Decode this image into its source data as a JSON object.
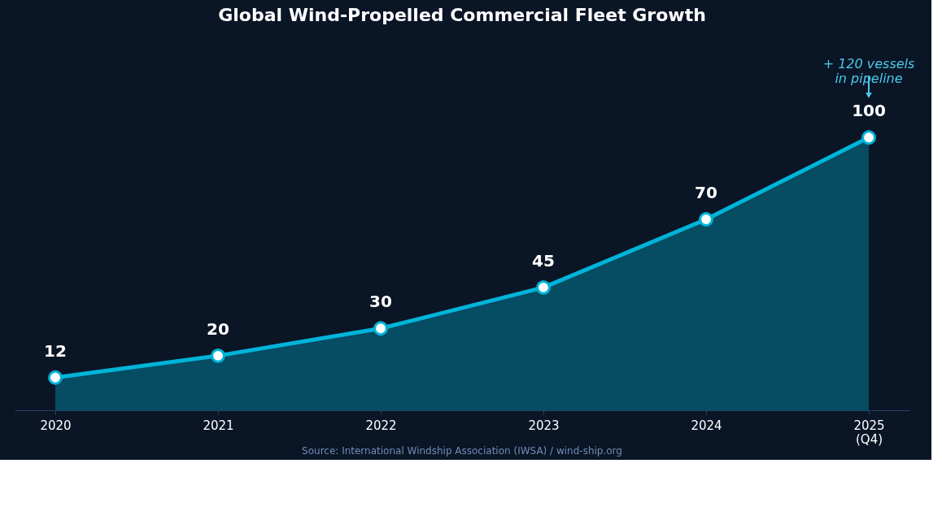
{
  "chart_data": {
    "type": "area",
    "title": "Global Wind-Propelled Commercial Fleet Growth",
    "categories": [
      "2020",
      "2021",
      "2022",
      "2023",
      "2024",
      "2025\n(Q4)"
    ],
    "series": [
      {
        "color": "#00b4d8",
        "values": [
          12,
          20,
          30,
          45,
          70,
          100
        ]
      }
    ],
    "tick_labels": "x",
    "data_labels": true,
    "marker": "circle",
    "grid": false,
    "annotations": [
      "+ 120 vessels\nin pipeline",
      "Source: International Windship Association (IWSA) / wind-ship.org"
    ]
  }
}
